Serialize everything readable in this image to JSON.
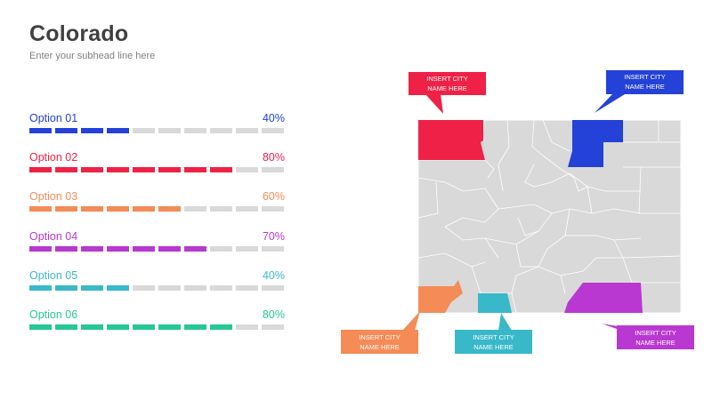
{
  "header": {
    "title": "Colorado",
    "subhead": "Enter your subhead line here"
  },
  "options": [
    {
      "label": "Option 01",
      "percent_label": "40%",
      "value": 40,
      "color": "#2441d8"
    },
    {
      "label": "Option 02",
      "percent_label": "80%",
      "value": 80,
      "color": "#ef2146"
    },
    {
      "label": "Option 03",
      "percent_label": "60%",
      "value": 60,
      "color": "#f58b57"
    },
    {
      "label": "Option 04",
      "percent_label": "70%",
      "value": 70,
      "color": "#b938d1"
    },
    {
      "label": "Option 05",
      "percent_label": "40%",
      "value": 40,
      "color": "#39b8c9"
    },
    {
      "label": "Option 06",
      "percent_label": "80%",
      "value": 80,
      "color": "#27c795"
    }
  ],
  "bar_segments": 10,
  "inactive_color": "#d9d9d9",
  "map": {
    "state_color": "#d9d9d9",
    "callouts": [
      {
        "line1": "INSERT CITY",
        "line2": "NAME HERE",
        "color": "#ef2146"
      },
      {
        "line1": "INSERT CITY",
        "line2": "NAME HERE",
        "color": "#2441d8"
      },
      {
        "line1": "INSERT CITY",
        "line2": "NAME HERE",
        "color": "#f58b57"
      },
      {
        "line1": "INSERT CITY",
        "line2": "NAME HERE",
        "color": "#39b8c9"
      },
      {
        "line1": "INSERT CITY",
        "line2": "NAME HERE",
        "color": "#b938d1"
      }
    ]
  }
}
